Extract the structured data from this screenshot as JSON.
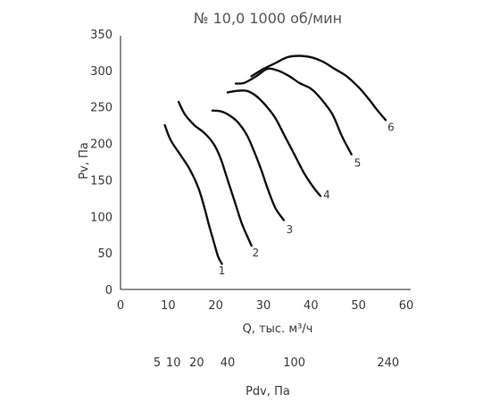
{
  "chart_data": {
    "type": "line",
    "title": "№ 10,0 1000 об/мин",
    "xlabel": "Q, тыс. м³/ч",
    "ylabel": "Pv, Па",
    "xlim": [
      0,
      60
    ],
    "ylim": [
      0,
      350
    ],
    "x_ticks": [
      0,
      10,
      20,
      30,
      40,
      50,
      60
    ],
    "y_ticks": [
      0,
      50,
      100,
      150,
      200,
      250,
      300,
      350
    ],
    "grid": false,
    "secondary_axis": {
      "label": "Pdv, Па",
      "ticks": [
        {
          "label": "5",
          "q": 7.7
        },
        {
          "label": "10",
          "q": 11.1
        },
        {
          "label": "20",
          "q": 16
        },
        {
          "label": "40",
          "q": 22.5
        },
        {
          "label": "100",
          "q": 36.5
        },
        {
          "label": "240",
          "q": 56.2
        }
      ]
    },
    "series": [
      {
        "name": "1",
        "points": [
          [
            9.3,
            225
          ],
          [
            10.5,
            205
          ],
          [
            12.5,
            185
          ],
          [
            14.5,
            165
          ],
          [
            16.3,
            140
          ],
          [
            17.5,
            115
          ],
          [
            18.5,
            90
          ],
          [
            19.6,
            65
          ],
          [
            20.5,
            45
          ],
          [
            21.3,
            35
          ]
        ]
      },
      {
        "name": "2",
        "points": [
          [
            12.2,
            257
          ],
          [
            13.5,
            240
          ],
          [
            15.5,
            225
          ],
          [
            17.5,
            215
          ],
          [
            19.5,
            200
          ],
          [
            21,
            180
          ],
          [
            22.5,
            150
          ],
          [
            24,
            120
          ],
          [
            25.5,
            90
          ],
          [
            27.5,
            60
          ]
        ]
      },
      {
        "name": "3",
        "points": [
          [
            19.3,
            245
          ],
          [
            21,
            244
          ],
          [
            22.5,
            240
          ],
          [
            24.5,
            230
          ],
          [
            26.5,
            212
          ],
          [
            28,
            190
          ],
          [
            29.5,
            165
          ],
          [
            30.8,
            140
          ],
          [
            32.5,
            112
          ],
          [
            34.3,
            95
          ]
        ]
      },
      {
        "name": "4",
        "points": [
          [
            22.5,
            270
          ],
          [
            24.5,
            272
          ],
          [
            26.5,
            272
          ],
          [
            28.5,
            265
          ],
          [
            30.5,
            252
          ],
          [
            32.5,
            235
          ],
          [
            34.5,
            210
          ],
          [
            36.5,
            185
          ],
          [
            38.5,
            160
          ],
          [
            40.5,
            140
          ],
          [
            42,
            128
          ]
        ]
      },
      {
        "name": "5",
        "points": [
          [
            24.2,
            282
          ],
          [
            26,
            283
          ],
          [
            28.5,
            292
          ],
          [
            30.8,
            302
          ],
          [
            33,
            300
          ],
          [
            35.5,
            292
          ],
          [
            37.5,
            283
          ],
          [
            40,
            275
          ],
          [
            42,
            262
          ],
          [
            44.5,
            240
          ],
          [
            46.5,
            210
          ],
          [
            48.5,
            185
          ]
        ]
      },
      {
        "name": "6",
        "points": [
          [
            27.5,
            292
          ],
          [
            30,
            302
          ],
          [
            32.5,
            310
          ],
          [
            35,
            318
          ],
          [
            37.5,
            320
          ],
          [
            40,
            318
          ],
          [
            42.5,
            312
          ],
          [
            45,
            302
          ],
          [
            47.5,
            292
          ],
          [
            50,
            277
          ],
          [
            52,
            262
          ],
          [
            54,
            245
          ],
          [
            55.7,
            232
          ]
        ]
      }
    ],
    "labels": [
      {
        "text": "1",
        "q": 21.3,
        "p": 26
      },
      {
        "text": "2",
        "q": 28.4,
        "p": 50
      },
      {
        "text": "3",
        "q": 35.5,
        "p": 82
      },
      {
        "text": "4",
        "q": 43.3,
        "p": 130
      },
      {
        "text": "5",
        "q": 49.8,
        "p": 173
      },
      {
        "text": "6",
        "q": 56.8,
        "p": 222
      }
    ]
  }
}
